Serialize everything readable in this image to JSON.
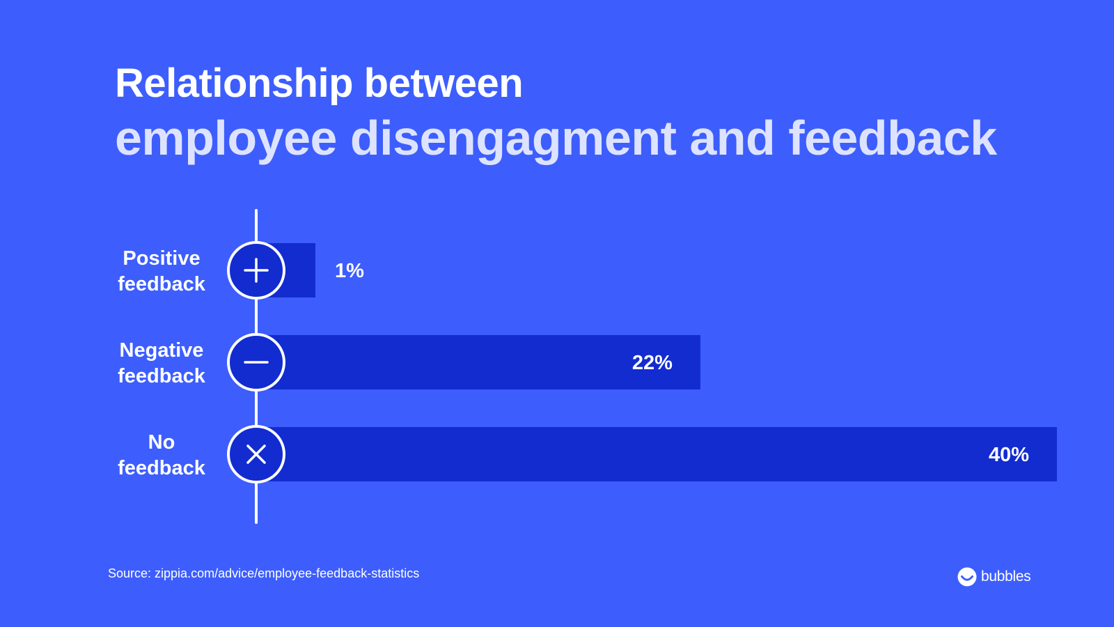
{
  "colors": {
    "background": "#3d5efd",
    "bar": "#122cd0",
    "text": "#ffffff",
    "title_accent": "#dde3ff"
  },
  "title": {
    "line1": "Relationship between",
    "line2": "employee disengagment and feedback"
  },
  "chart_data": {
    "type": "bar",
    "orientation": "horizontal",
    "categories": [
      {
        "line1": "Positive",
        "line2": "feedback",
        "icon": "plus-icon"
      },
      {
        "line1": "Negative",
        "line2": "feedback",
        "icon": "minus-icon"
      },
      {
        "line1": "No",
        "line2": "feedback",
        "icon": "x-icon"
      }
    ],
    "values": [
      1,
      22,
      40
    ],
    "value_labels": [
      "1%",
      "22%",
      "40%"
    ],
    "unit": "%",
    "xlim": [
      0,
      40
    ],
    "grid": false,
    "legend": "none"
  },
  "source": "Source: zippia.com/advice/employee-feedback-statistics",
  "brand": {
    "name": "bubbles",
    "icon": "bubbles-logo-icon"
  }
}
